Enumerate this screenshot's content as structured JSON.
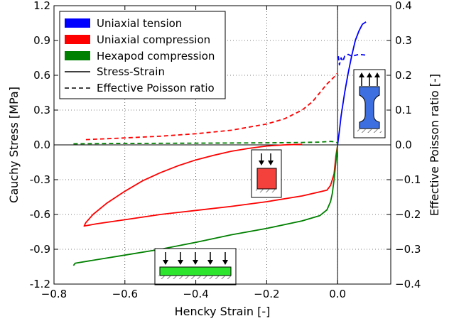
{
  "chart_data": {
    "type": "line",
    "xlabel": "Hencky Strain [-]",
    "ylabel": "Cauchy Stress [MPa]",
    "ylabel_right": "Effective Poisson ratio [-]",
    "xlim": [
      -0.8,
      0.15
    ],
    "ylim": [
      -1.2,
      1.2
    ],
    "ylim_right": [
      -0.4,
      0.4
    ],
    "x_ticks": [
      -0.8,
      -0.6,
      -0.4,
      -0.2,
      0.0
    ],
    "x_tick_labels": [
      "−0.8",
      "−0.6",
      "−0.4",
      "−0.2",
      "0.0"
    ],
    "y_ticks": [
      1.2,
      0.9,
      0.6,
      0.3,
      0.0,
      -0.3,
      -0.6,
      -0.9,
      -1.2
    ],
    "y_tick_labels": [
      "1.2",
      "0.9",
      "0.6",
      "0.3",
      "0.0",
      "-0.3",
      "-0.6",
      "-0.9",
      "-1.2"
    ],
    "y_right_ticks": [
      0.4,
      0.3,
      0.2,
      0.1,
      0.0,
      -0.1,
      -0.2,
      -0.3,
      -0.4
    ],
    "y_right_tick_labels": [
      "0.4",
      "0.3",
      "0.2",
      "0.1",
      "0.0",
      "−0.1",
      "−0.2",
      "−0.3",
      "−0.4"
    ],
    "grid": true,
    "legend_position": "top-left",
    "legend": [
      {
        "label": "Uniaxial tension",
        "kind": "patch",
        "color": "#0000ff"
      },
      {
        "label": "Uniaxial compression",
        "kind": "patch",
        "color": "#ff0000"
      },
      {
        "label": "Hexapod compression",
        "kind": "patch",
        "color": "#008000"
      },
      {
        "label": "Stress-Strain",
        "kind": "solid"
      },
      {
        "label": "Effective Poisson ratio",
        "kind": "dashed"
      }
    ],
    "series": [
      {
        "color": "#0000ff",
        "style": "solid",
        "axis": "left",
        "points": [
          [
            0.0,
            0.0
          ],
          [
            0.005,
            0.12
          ],
          [
            0.01,
            0.25
          ],
          [
            0.02,
            0.45
          ],
          [
            0.03,
            0.62
          ],
          [
            0.04,
            0.77
          ],
          [
            0.05,
            0.9
          ],
          [
            0.06,
            0.98
          ],
          [
            0.07,
            1.04
          ],
          [
            0.08,
            1.06
          ]
        ]
      },
      {
        "color": "#0000ff",
        "style": "dashed",
        "axis": "right",
        "points": [
          [
            0.002,
            0.255
          ],
          [
            0.005,
            0.23
          ],
          [
            0.01,
            0.25
          ],
          [
            0.015,
            0.24
          ],
          [
            0.02,
            0.255
          ],
          [
            0.03,
            0.26
          ],
          [
            0.04,
            0.255
          ],
          [
            0.06,
            0.26
          ],
          [
            0.08,
            0.258
          ]
        ]
      },
      {
        "color": "#ff0000",
        "style": "solid",
        "axis": "left",
        "points": [
          [
            0.0,
            0.0
          ],
          [
            -0.005,
            -0.1
          ],
          [
            -0.01,
            -0.25
          ],
          [
            -0.02,
            -0.35
          ],
          [
            -0.03,
            -0.39
          ],
          [
            -0.05,
            -0.405
          ],
          [
            -0.1,
            -0.44
          ],
          [
            -0.2,
            -0.49
          ],
          [
            -0.3,
            -0.53
          ],
          [
            -0.4,
            -0.565
          ],
          [
            -0.5,
            -0.6
          ],
          [
            -0.6,
            -0.645
          ],
          [
            -0.68,
            -0.68
          ],
          [
            -0.715,
            -0.7
          ],
          [
            -0.71,
            -0.67
          ],
          [
            -0.69,
            -0.6
          ],
          [
            -0.65,
            -0.5
          ],
          [
            -0.6,
            -0.4
          ],
          [
            -0.55,
            -0.31
          ],
          [
            -0.5,
            -0.24
          ],
          [
            -0.45,
            -0.18
          ],
          [
            -0.4,
            -0.13
          ],
          [
            -0.35,
            -0.09
          ],
          [
            -0.3,
            -0.055
          ],
          [
            -0.25,
            -0.03
          ],
          [
            -0.2,
            -0.01
          ],
          [
            -0.15,
            0.0
          ],
          [
            -0.1,
            0.005
          ]
        ]
      },
      {
        "color": "#ff0000",
        "style": "dashed",
        "axis": "right",
        "points": [
          [
            -0.71,
            0.015
          ],
          [
            -0.6,
            0.02
          ],
          [
            -0.5,
            0.025
          ],
          [
            -0.4,
            0.032
          ],
          [
            -0.3,
            0.042
          ],
          [
            -0.2,
            0.06
          ],
          [
            -0.15,
            0.075
          ],
          [
            -0.1,
            0.1
          ],
          [
            -0.07,
            0.125
          ],
          [
            -0.05,
            0.15
          ],
          [
            -0.03,
            0.175
          ],
          [
            -0.015,
            0.19
          ],
          [
            -0.005,
            0.2
          ],
          [
            -0.002,
            0.205
          ]
        ]
      },
      {
        "color": "#008000",
        "style": "solid",
        "axis": "left",
        "points": [
          [
            0.0,
            0.0
          ],
          [
            -0.005,
            -0.15
          ],
          [
            -0.01,
            -0.3
          ],
          [
            -0.015,
            -0.42
          ],
          [
            -0.02,
            -0.49
          ],
          [
            -0.03,
            -0.56
          ],
          [
            -0.05,
            -0.61
          ],
          [
            -0.1,
            -0.655
          ],
          [
            -0.2,
            -0.72
          ],
          [
            -0.3,
            -0.775
          ],
          [
            -0.4,
            -0.84
          ],
          [
            -0.5,
            -0.9
          ],
          [
            -0.6,
            -0.95
          ],
          [
            -0.7,
            -1.0
          ],
          [
            -0.74,
            -1.02
          ],
          [
            -0.745,
            -1.04
          ]
        ]
      },
      {
        "color": "#008000",
        "style": "dashed",
        "axis": "right",
        "points": [
          [
            -0.745,
            0.003
          ],
          [
            -0.6,
            0.004
          ],
          [
            -0.4,
            0.005
          ],
          [
            -0.2,
            0.006
          ],
          [
            -0.1,
            0.007
          ],
          [
            -0.05,
            0.008
          ],
          [
            -0.02,
            0.01
          ],
          [
            -0.01,
            0.009
          ],
          [
            0.0,
            0.006
          ]
        ]
      }
    ]
  }
}
